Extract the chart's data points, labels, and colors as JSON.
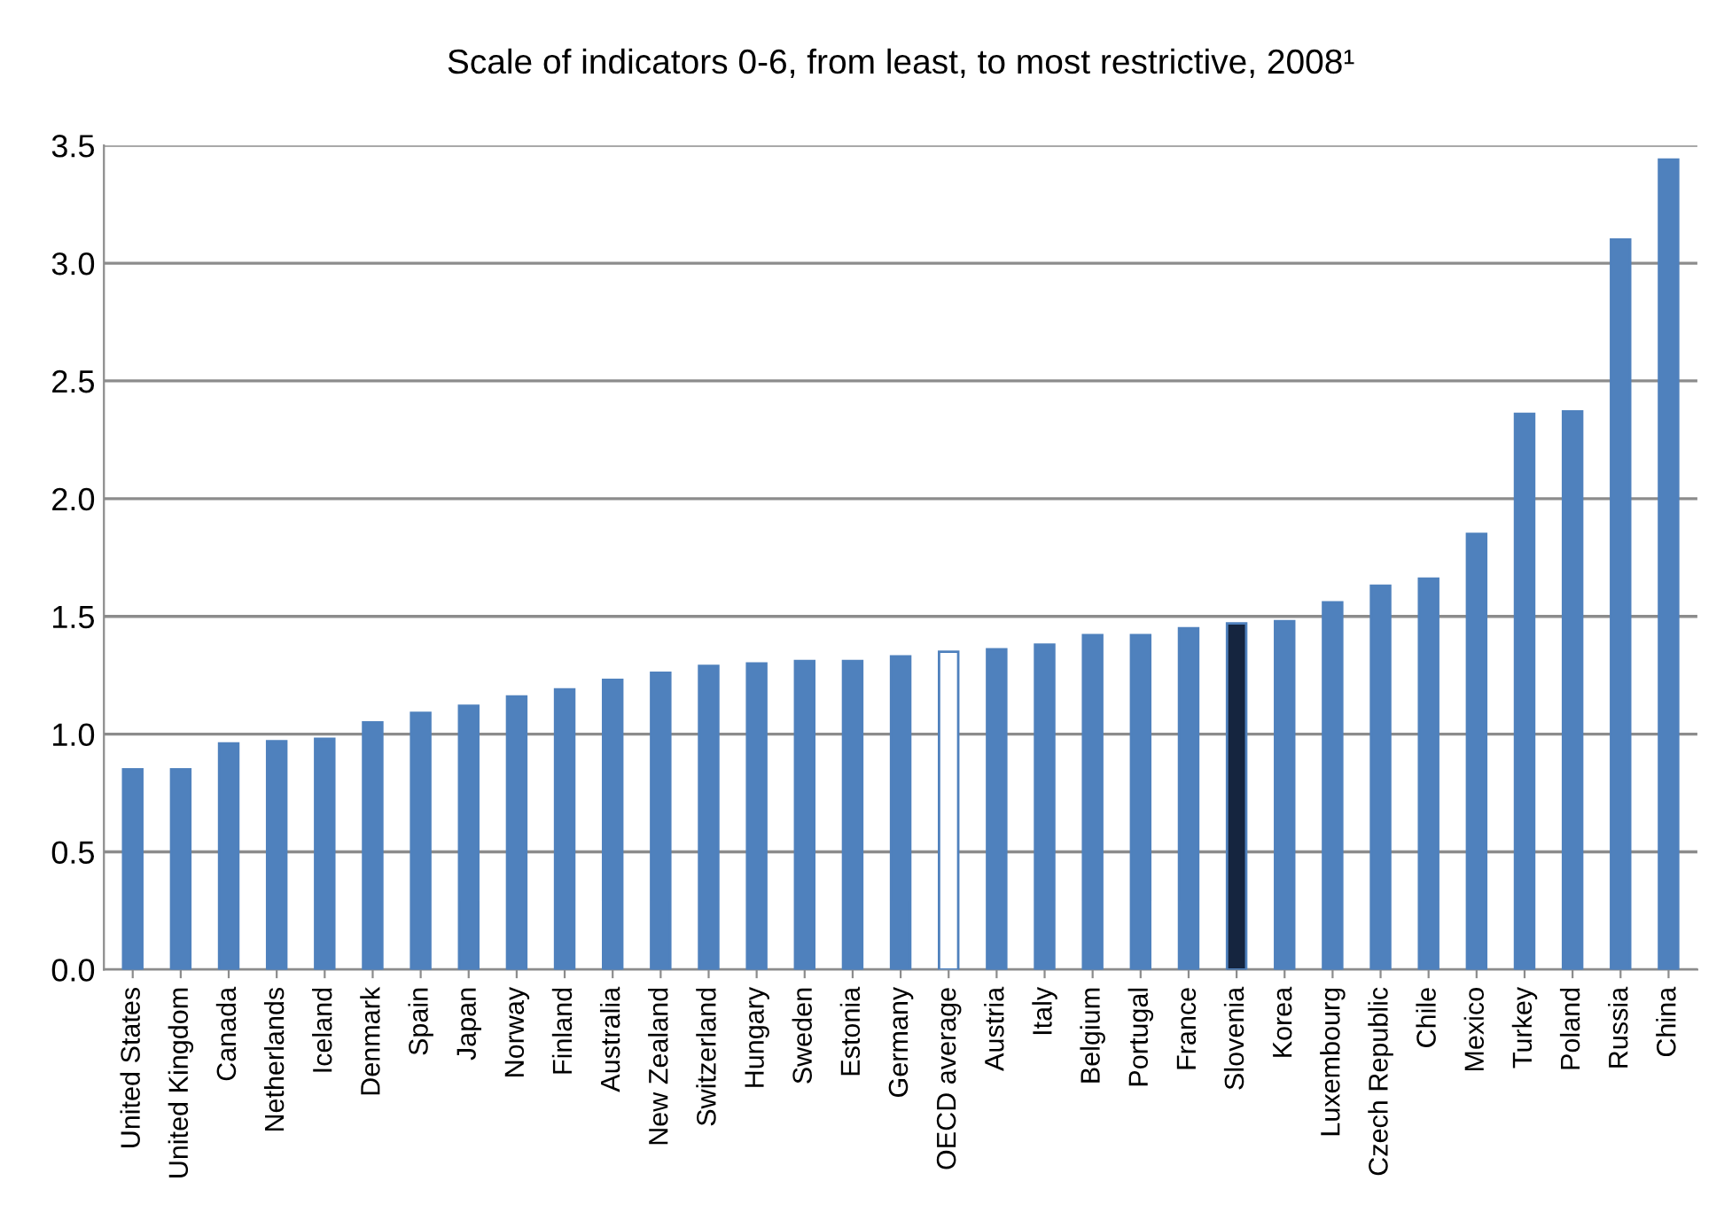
{
  "chart_data": {
    "type": "bar",
    "title": "Scale of indicators 0-6, from least, to most restrictive, 2008¹",
    "categories": [
      "United States",
      "United Kingdom",
      "Canada",
      "Netherlands",
      "Iceland",
      "Denmark",
      "Spain",
      "Japan",
      "Norway",
      "Finland",
      "Australia",
      "New Zealand",
      "Switzerland",
      "Hungary",
      "Sweden",
      "Estonia",
      "Germany",
      "OECD average",
      "Austria",
      "Italy",
      "Belgium",
      "Portugal",
      "France",
      "Slovenia",
      "Korea",
      "Luxembourg",
      "Czech Republic",
      "Chile",
      "Mexico",
      "Turkey",
      "Poland",
      "Russia",
      "China"
    ],
    "values": [
      0.85,
      0.85,
      0.96,
      0.97,
      0.98,
      1.05,
      1.09,
      1.12,
      1.16,
      1.19,
      1.23,
      1.26,
      1.29,
      1.3,
      1.31,
      1.31,
      1.33,
      1.35,
      1.36,
      1.38,
      1.42,
      1.42,
      1.45,
      1.47,
      1.48,
      1.56,
      1.63,
      1.66,
      1.85,
      2.36,
      2.37,
      3.1,
      3.44
    ],
    "color": "#4f81bd",
    "colors": [
      "#4f81bd",
      "#4f81bd",
      "#4f81bd",
      "#4f81bd",
      "#4f81bd",
      "#4f81bd",
      "#4f81bd",
      "#4f81bd",
      "#4f81bd",
      "#4f81bd",
      "#4f81bd",
      "#4f81bd",
      "#4f81bd",
      "#4f81bd",
      "#4f81bd",
      "#4f81bd",
      "#4f81bd",
      "#ffffff",
      "#4f81bd",
      "#4f81bd",
      "#4f81bd",
      "#4f81bd",
      "#4f81bd",
      "#15253f",
      "#4f81bd",
      "#4f81bd",
      "#4f81bd",
      "#4f81bd",
      "#4f81bd",
      "#4f81bd",
      "#4f81bd",
      "#4f81bd",
      "#4f81bd"
    ],
    "ylim": [
      0,
      3.5
    ],
    "yticks": [
      {
        "value": 0,
        "label": "0.0"
      },
      {
        "value": 0.5,
        "label": "0.5"
      },
      {
        "value": 1,
        "label": "1.0"
      },
      {
        "value": 1.5,
        "label": "1.5"
      },
      {
        "value": 2,
        "label": "2.0"
      },
      {
        "value": 2.5,
        "label": "2.5"
      },
      {
        "value": 3,
        "label": "3.0"
      },
      {
        "value": 3.5,
        "label": "3.5"
      }
    ],
    "grid": "y"
  }
}
